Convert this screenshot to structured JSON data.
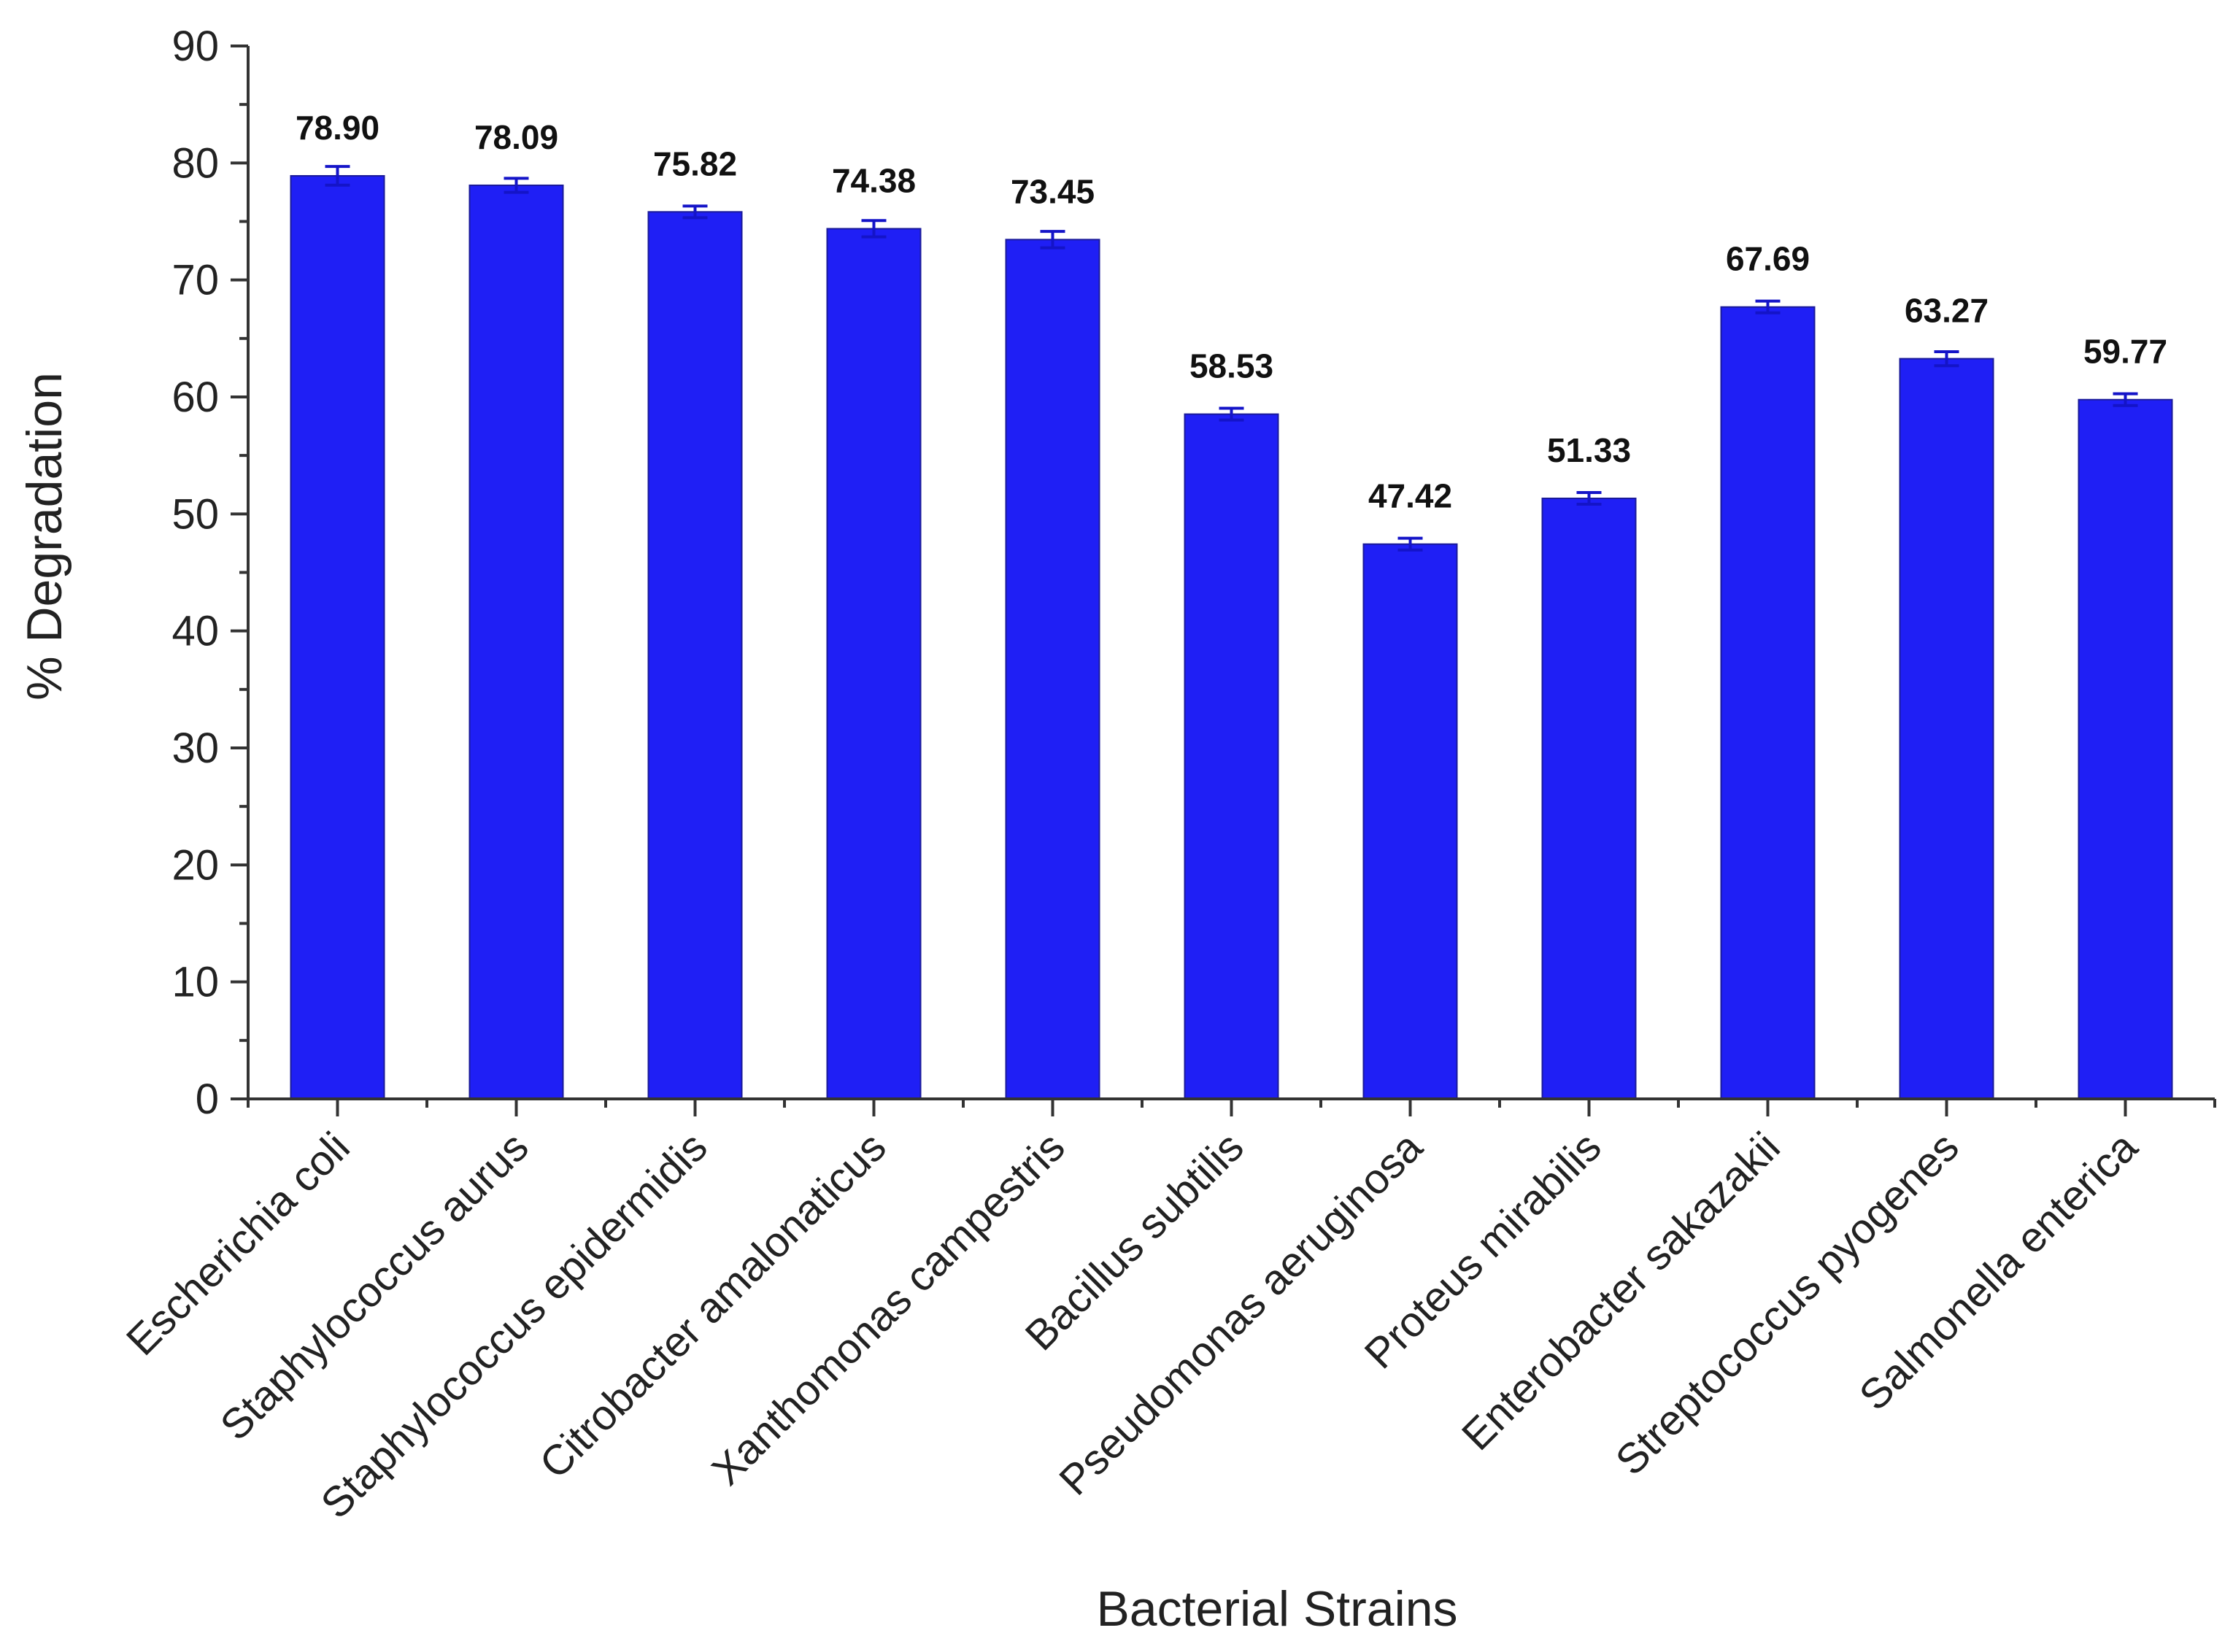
{
  "chart_data": {
    "type": "bar",
    "title": "",
    "xlabel": "Bacterial Strains",
    "ylabel": "% Degradation",
    "ylim": [
      0,
      90
    ],
    "yticks": [
      0,
      10,
      20,
      30,
      40,
      50,
      60,
      70,
      80,
      90
    ],
    "grid": false,
    "legend": "none",
    "bar_color": "#1f1ff5",
    "errorbar_color": "#1414c8",
    "categories": [
      "Escherichia coli",
      "Staphylococcus aurus",
      "Staphylococcus epidermidis",
      "Citrobacter amalonaticus",
      "Xanthomonas campestris",
      "Bacillus subtilis",
      "Pseudomonas aeruginosa",
      "Proteus mirabilis",
      "Enterobacter sakazakii",
      "Streptococcus pyogenes",
      "Salmonella enterica"
    ],
    "values": [
      78.9,
      78.09,
      75.82,
      74.38,
      73.45,
      58.53,
      47.42,
      51.33,
      67.69,
      63.27,
      59.77
    ],
    "value_labels": [
      "78.90",
      "78.09",
      "75.82",
      "74.38",
      "73.45",
      "58.53",
      "47.42",
      "51.33",
      "67.69",
      "63.27",
      "59.77"
    ],
    "errors": [
      0.8,
      0.6,
      0.5,
      0.7,
      0.7,
      0.5,
      0.5,
      0.5,
      0.5,
      0.6,
      0.5
    ]
  }
}
